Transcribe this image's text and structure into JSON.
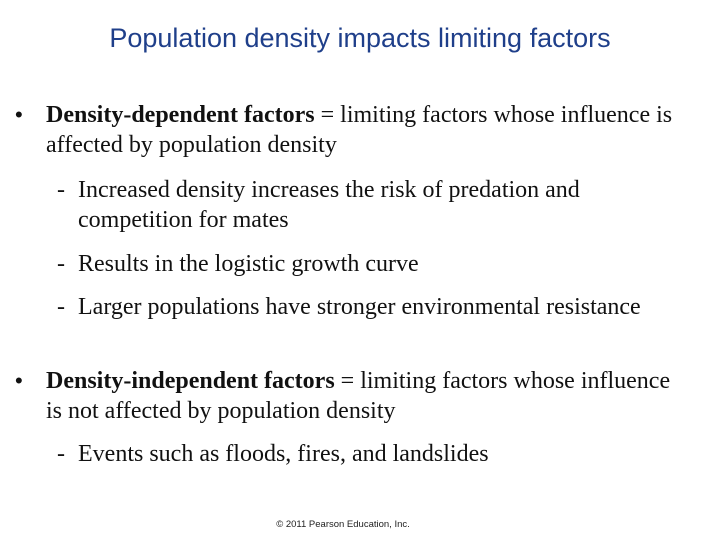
{
  "slide": {
    "title": "Population density impacts limiting factors",
    "bullets": [
      {
        "marker": "•",
        "term": "Density-dependent factors",
        "definition": " = limiting factors whose influence is affected by population density",
        "subpoints": [
          {
            "marker": "-",
            "text": "Increased density increases the risk of predation and competition for mates"
          },
          {
            "marker": "-",
            "text": "Results in the logistic growth curve"
          },
          {
            "marker": "-",
            "text": "Larger populations have stronger environmental resistance"
          }
        ]
      },
      {
        "marker": "•",
        "term": "Density-independent factors",
        "definition": " = limiting factors whose influence is not affected by population density",
        "subpoints": [
          {
            "marker": "-",
            "text": "Events such as floods, fires, and landslides"
          }
        ]
      }
    ],
    "footer": "© 2011 Pearson Education, Inc."
  }
}
